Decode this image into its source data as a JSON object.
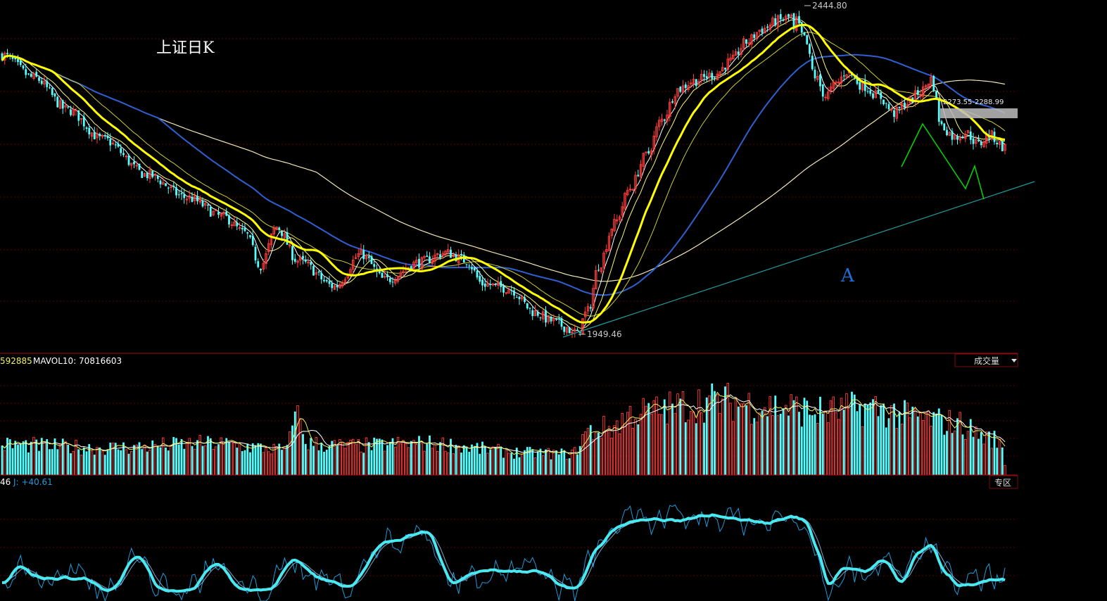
{
  "chart_data": {
    "type": "candlestick",
    "title": "上证日K",
    "annotation": "A",
    "price": {
      "high_label": "2444.80",
      "low_label": "1949.46",
      "range_label": "2273.55-2288.99",
      "ylim": [
        1925,
        2470
      ]
    },
    "volume": {
      "mavol5_label": "592885",
      "mavol10_label": "MAVOL10: 70816603",
      "selector_label": "成交量",
      "ylim": [
        0,
        200
      ]
    },
    "kdj": {
      "k_label": "46",
      "j_label": "J: +40.61",
      "button_label": "专区",
      "ylim": [
        -20,
        130
      ]
    },
    "colors": {
      "up": "#ff3c3c",
      "down": "#54ffff",
      "ma5": "#ffffff",
      "ma10": "#f7f778",
      "ma20": "#ffff00",
      "ma30": "#cccc33",
      "ma60": "#2f5fd0",
      "ma120": "#f0e6b4",
      "trendline": "#1f9b9b",
      "zigzag": "#00d800",
      "kdj_main": "#4ae8f0",
      "grid": "#5a0000"
    },
    "anchors": [
      [
        0,
        2385
      ],
      [
        12,
        2350
      ],
      [
        25,
        2300
      ],
      [
        38,
        2255
      ],
      [
        55,
        2200
      ],
      [
        70,
        2165
      ],
      [
        84,
        2135
      ],
      [
        92,
        2110
      ],
      [
        98,
        2060
      ],
      [
        104,
        2120
      ],
      [
        112,
        2068
      ],
      [
        126,
        2028
      ],
      [
        136,
        2078
      ],
      [
        145,
        2038
      ],
      [
        158,
        2065
      ],
      [
        168,
        2080
      ],
      [
        176,
        2068
      ],
      [
        182,
        2032
      ],
      [
        192,
        2025
      ],
      [
        202,
        1988
      ],
      [
        208,
        1975
      ],
      [
        214,
        1965
      ],
      [
        217,
        1949.46
      ],
      [
        222,
        1990
      ],
      [
        226,
        2060
      ],
      [
        232,
        2125
      ],
      [
        238,
        2180
      ],
      [
        244,
        2230
      ],
      [
        250,
        2285
      ],
      [
        256,
        2332
      ],
      [
        262,
        2345
      ],
      [
        270,
        2355
      ],
      [
        276,
        2375
      ],
      [
        282,
        2405
      ],
      [
        288,
        2425
      ],
      [
        294,
        2438
      ],
      [
        300,
        2444.8
      ],
      [
        304,
        2410
      ],
      [
        308,
        2352
      ],
      [
        312,
        2322
      ],
      [
        316,
        2340
      ],
      [
        320,
        2360
      ],
      [
        326,
        2338
      ],
      [
        332,
        2322
      ],
      [
        338,
        2295
      ],
      [
        343,
        2312
      ],
      [
        348,
        2328
      ],
      [
        352,
        2348
      ],
      [
        356,
        2275
      ],
      [
        361,
        2258
      ],
      [
        365,
        2266
      ],
      [
        370,
        2247
      ],
      [
        374,
        2262
      ],
      [
        380,
        2242
      ]
    ],
    "kdj_anchors": [
      [
        0,
        5
      ],
      [
        5,
        25
      ],
      [
        15,
        10
      ],
      [
        30,
        10
      ],
      [
        40,
        -5
      ],
      [
        50,
        40
      ],
      [
        60,
        -5
      ],
      [
        70,
        -5
      ],
      [
        80,
        30
      ],
      [
        90,
        -5
      ],
      [
        100,
        -5
      ],
      [
        110,
        35
      ],
      [
        120,
        10
      ],
      [
        130,
        0
      ],
      [
        145,
        60
      ],
      [
        160,
        72
      ],
      [
        170,
        5
      ],
      [
        180,
        20
      ],
      [
        200,
        20
      ],
      [
        216,
        -5
      ],
      [
        225,
        50
      ],
      [
        232,
        80
      ],
      [
        240,
        88
      ],
      [
        255,
        88
      ],
      [
        268,
        95
      ],
      [
        276,
        92
      ],
      [
        282,
        88
      ],
      [
        288,
        85
      ],
      [
        298,
        92
      ],
      [
        303,
        90
      ],
      [
        308,
        50
      ],
      [
        312,
        0
      ],
      [
        318,
        25
      ],
      [
        326,
        20
      ],
      [
        333,
        35
      ],
      [
        340,
        5
      ],
      [
        346,
        45
      ],
      [
        351,
        55
      ],
      [
        356,
        20
      ],
      [
        362,
        0
      ],
      [
        370,
        5
      ],
      [
        376,
        8
      ]
    ],
    "volume_anchors": [
      [
        0,
        58
      ],
      [
        40,
        52
      ],
      [
        80,
        60
      ],
      [
        108,
        48
      ],
      [
        111,
        118
      ],
      [
        116,
        60
      ],
      [
        130,
        55
      ],
      [
        160,
        60
      ],
      [
        200,
        42
      ],
      [
        216,
        40
      ],
      [
        222,
        82
      ],
      [
        230,
        90
      ],
      [
        240,
        118
      ],
      [
        270,
        140
      ],
      [
        295,
        130
      ],
      [
        310,
        120
      ],
      [
        330,
        128
      ],
      [
        345,
        110
      ],
      [
        360,
        100
      ],
      [
        375,
        70
      ],
      [
        380,
        50
      ]
    ]
  }
}
